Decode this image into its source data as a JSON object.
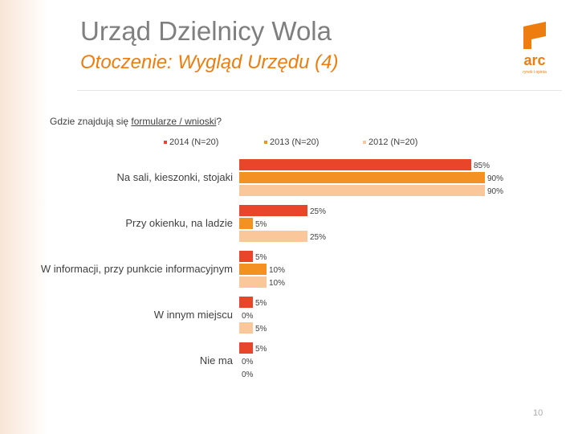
{
  "header": {
    "title": "Urząd Dzielnicy Wola",
    "subtitle": "Otoczenie: Wygląd Urzędu (4)",
    "logo_text": "arc",
    "logo_tagline": "rynek i opinia"
  },
  "question": {
    "prefix": "Gdzie znajdują się ",
    "underlined": "formularze / wnioski",
    "suffix": "?"
  },
  "colors": {
    "s2014": "#e8452a",
    "s2013": "#f39223",
    "s2012": "#f9c799",
    "accent": "#ee7d0f"
  },
  "chart_data": {
    "type": "bar",
    "orientation": "horizontal",
    "categories": [
      "Na sali, kieszonki, stojaki",
      "Przy okienku, na ladzie",
      "W informacji, przy punkcie informacyjnym",
      "W innym miejscu",
      "Nie ma"
    ],
    "series": [
      {
        "name": "2014 (N=20)",
        "values": [
          85,
          25,
          5,
          5,
          5
        ],
        "labels": [
          "85%",
          "25%",
          "5%",
          "5%",
          "5%"
        ]
      },
      {
        "name": "2013 (N=20)",
        "values": [
          90,
          5,
          10,
          0,
          0
        ],
        "labels": [
          "90%",
          "5%",
          "10%",
          "0%",
          "0%"
        ]
      },
      {
        "name": "2012 (N=20)",
        "values": [
          90,
          25,
          10,
          5,
          0
        ],
        "labels": [
          "90%",
          "25%",
          "10%",
          "5%",
          "0%"
        ]
      }
    ],
    "xlim": [
      0,
      100
    ],
    "grid": false,
    "legend_position": "top"
  },
  "footer": {
    "page_number": "10"
  }
}
